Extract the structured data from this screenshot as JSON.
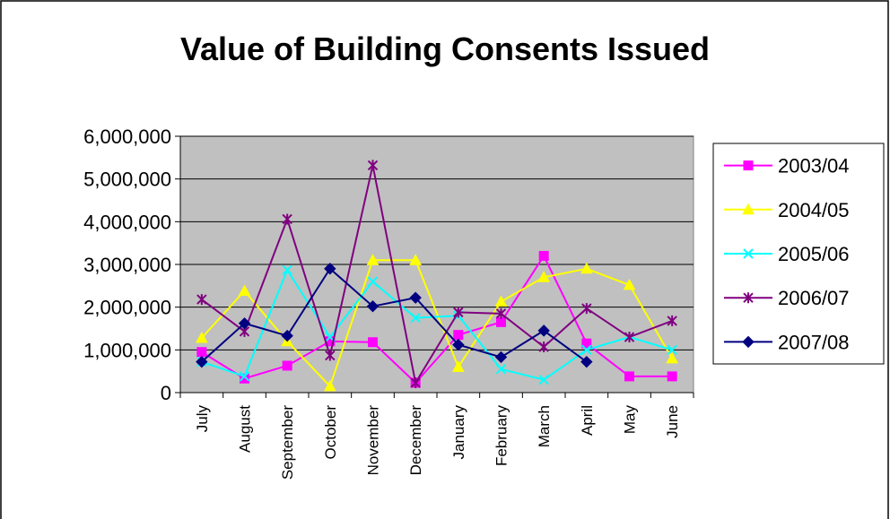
{
  "chart_data": {
    "type": "line",
    "title": "Value of Building Consents Issued",
    "xlabel": "",
    "ylabel": "",
    "ylim": [
      0,
      6000000
    ],
    "yticks": [
      0,
      1000000,
      2000000,
      3000000,
      4000000,
      5000000,
      6000000
    ],
    "ytick_labels": [
      "0",
      "1,000,000",
      "2,000,000",
      "3,000,000",
      "4,000,000",
      "5,000,000",
      "6,000,000"
    ],
    "grid": true,
    "legend_position": "right",
    "plot_background": "#c0c0c0",
    "categories": [
      "July",
      "August",
      "September",
      "October",
      "November",
      "December",
      "January",
      "February",
      "March",
      "April",
      "May",
      "June"
    ],
    "series": [
      {
        "name": "2003/04",
        "color": "#ff00ff",
        "marker": "square",
        "values": [
          950000,
          330000,
          630000,
          1200000,
          1180000,
          230000,
          1350000,
          1650000,
          3200000,
          1150000,
          380000,
          380000
        ]
      },
      {
        "name": "2004/05",
        "color": "#ffff00",
        "marker": "triangle",
        "values": [
          1280000,
          2380000,
          1200000,
          150000,
          3100000,
          3100000,
          600000,
          2130000,
          2700000,
          2900000,
          2520000,
          800000
        ]
      },
      {
        "name": "2005/06",
        "color": "#00ffff",
        "marker": "x",
        "values": [
          720000,
          380000,
          2870000,
          1300000,
          2600000,
          1750000,
          1800000,
          550000,
          300000,
          1000000,
          1300000,
          1000000
        ]
      },
      {
        "name": "2006/07",
        "color": "#800080",
        "marker": "star",
        "values": [
          2180000,
          1430000,
          4060000,
          870000,
          5320000,
          230000,
          1880000,
          1850000,
          1070000,
          1970000,
          1300000,
          1680000
        ]
      },
      {
        "name": "2007/08",
        "color": "#000080",
        "marker": "diamond",
        "values": [
          720000,
          1620000,
          1330000,
          2900000,
          2020000,
          2220000,
          1120000,
          830000,
          1450000,
          720000,
          null,
          null
        ]
      }
    ]
  }
}
